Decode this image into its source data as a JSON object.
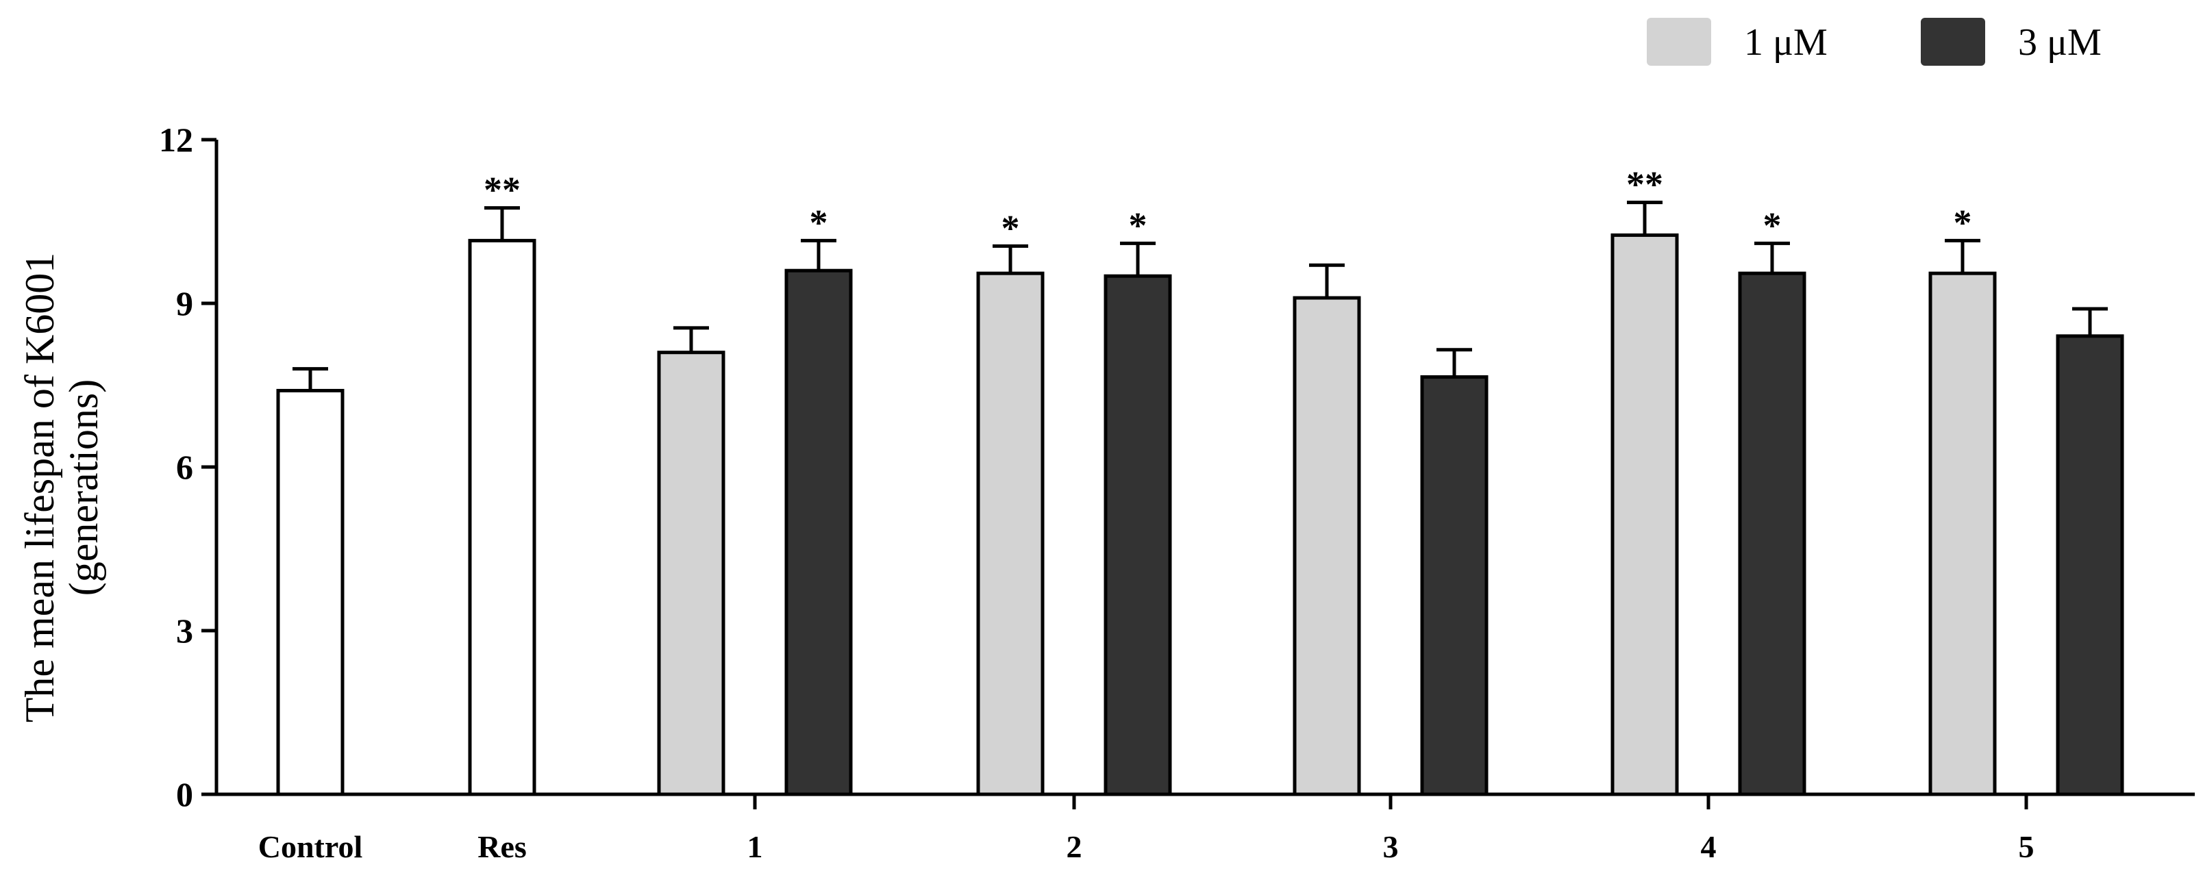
{
  "chart_data": {
    "type": "bar",
    "title": "",
    "ylabel_line1": "The mean lifespan of K6001",
    "ylabel_line2": "(generations)",
    "xlabel": "",
    "ylim": [
      0,
      12
    ],
    "yticks": [
      0,
      3,
      6,
      9,
      12
    ],
    "ytick_labels": [
      "0",
      "3",
      "6",
      "9",
      "12"
    ],
    "grid": false,
    "legend_position": "top-right",
    "legend": [
      {
        "label": "1 μM",
        "color": "#d3d3d3"
      },
      {
        "label": "3 μM",
        "color": "#333333"
      }
    ],
    "colors": {
      "control": "#ffffff",
      "light": "#d3d3d3",
      "dark": "#333333",
      "stroke": "#000000"
    },
    "groups": [
      {
        "label": "Control",
        "bars": [
          {
            "value": 7.4,
            "error": 0.4,
            "color": "control",
            "sig": ""
          }
        ]
      },
      {
        "label": "Res",
        "bars": [
          {
            "value": 10.15,
            "error": 0.6,
            "color": "control",
            "sig": "**"
          }
        ]
      },
      {
        "label": "1",
        "bars": [
          {
            "series": "1 μM",
            "value": 8.1,
            "error": 0.45,
            "color": "light",
            "sig": ""
          },
          {
            "series": "3 μM",
            "value": 9.6,
            "error": 0.55,
            "color": "dark",
            "sig": "*"
          }
        ]
      },
      {
        "label": "2",
        "bars": [
          {
            "series": "1 μM",
            "value": 9.55,
            "error": 0.5,
            "color": "light",
            "sig": "*"
          },
          {
            "series": "3 μM",
            "value": 9.5,
            "error": 0.6,
            "color": "dark",
            "sig": "*"
          }
        ]
      },
      {
        "label": "3",
        "bars": [
          {
            "series": "1 μM",
            "value": 9.1,
            "error": 0.6,
            "color": "light",
            "sig": ""
          },
          {
            "series": "3 μM",
            "value": 7.65,
            "error": 0.5,
            "color": "dark",
            "sig": ""
          }
        ]
      },
      {
        "label": "4",
        "bars": [
          {
            "series": "1 μM",
            "value": 10.25,
            "error": 0.6,
            "color": "light",
            "sig": "**"
          },
          {
            "series": "3 μM",
            "value": 9.55,
            "error": 0.55,
            "color": "dark",
            "sig": "*"
          }
        ]
      },
      {
        "label": "5",
        "bars": [
          {
            "series": "1 μM",
            "value": 9.55,
            "error": 0.6,
            "color": "light",
            "sig": "*"
          },
          {
            "series": "3 μM",
            "value": 8.4,
            "error": 0.5,
            "color": "dark",
            "sig": ""
          }
        ]
      }
    ]
  }
}
